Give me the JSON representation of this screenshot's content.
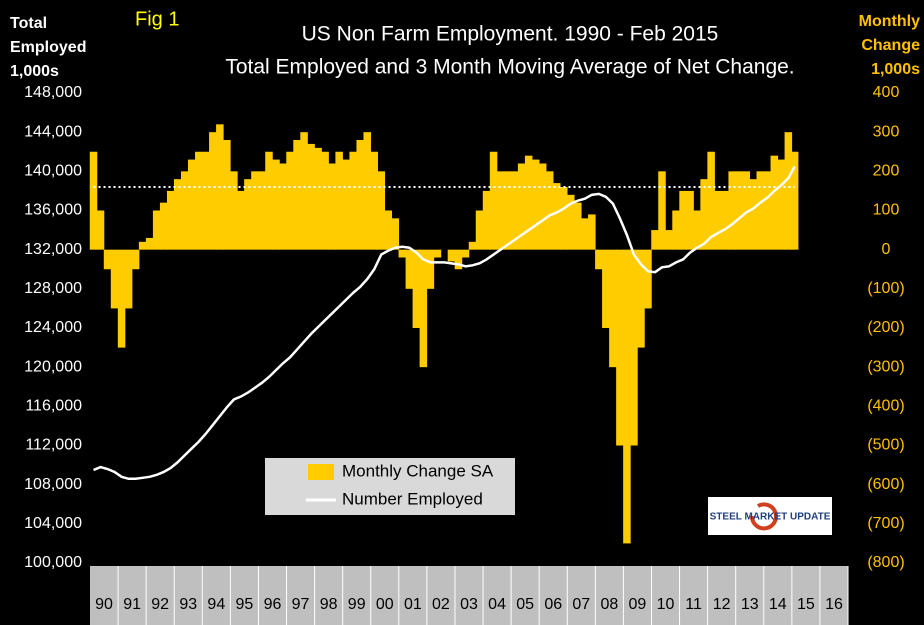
{
  "chart_data": {
    "type": "bar_line",
    "fig_label": "Fig 1",
    "title": [
      "US Non Farm Employment. 1990 - Feb 2015",
      "Total Employed and 3 Month Moving Average of Net Change."
    ],
    "y_label": [
      "Total",
      "Employed",
      "1,000s"
    ],
    "y2_label": [
      "Monthly",
      "Change",
      "1,000s"
    ],
    "logo": "STEEL MARKET UPDATE",
    "xlim": [
      1990,
      2017
    ],
    "xticks": [
      {
        "value": 1990.5,
        "label": "90"
      },
      {
        "value": 1991.5,
        "label": "91"
      },
      {
        "value": 1992.5,
        "label": "92"
      },
      {
        "value": 1993.5,
        "label": "93"
      },
      {
        "value": 1994.5,
        "label": "94"
      },
      {
        "value": 1995.5,
        "label": "95"
      },
      {
        "value": 1996.5,
        "label": "96"
      },
      {
        "value": 1997.5,
        "label": "97"
      },
      {
        "value": 1998.5,
        "label": "98"
      },
      {
        "value": 1999.5,
        "label": "99"
      },
      {
        "value": 2000.5,
        "label": "00"
      },
      {
        "value": 2001.5,
        "label": "01"
      },
      {
        "value": 2002.5,
        "label": "02"
      },
      {
        "value": 2003.5,
        "label": "03"
      },
      {
        "value": 2004.5,
        "label": "04"
      },
      {
        "value": 2005.5,
        "label": "05"
      },
      {
        "value": 2006.5,
        "label": "06"
      },
      {
        "value": 2007.5,
        "label": "07"
      },
      {
        "value": 2008.5,
        "label": "08"
      },
      {
        "value": 2009.5,
        "label": "09"
      },
      {
        "value": 2010.5,
        "label": "10"
      },
      {
        "value": 2011.5,
        "label": "11"
      },
      {
        "value": 2012.5,
        "label": "12"
      },
      {
        "value": 2013.5,
        "label": "13"
      },
      {
        "value": 2014.5,
        "label": "14"
      },
      {
        "value": 2015.5,
        "label": "15"
      },
      {
        "value": 2016.5,
        "label": "16"
      }
    ],
    "ylim": [
      100000,
      148000
    ],
    "yticks": [
      {
        "value": 100000,
        "label": "100,000"
      },
      {
        "value": 104000,
        "label": "104,000"
      },
      {
        "value": 108000,
        "label": "108,000"
      },
      {
        "value": 112000,
        "label": "112,000"
      },
      {
        "value": 116000,
        "label": "116,000"
      },
      {
        "value": 120000,
        "label": "120,000"
      },
      {
        "value": 124000,
        "label": "124,000"
      },
      {
        "value": 128000,
        "label": "128,000"
      },
      {
        "value": 132000,
        "label": "132,000"
      },
      {
        "value": 136000,
        "label": "136,000"
      },
      {
        "value": 140000,
        "label": "140,000"
      },
      {
        "value": 144000,
        "label": "144,000"
      },
      {
        "value": 148000,
        "label": "148,000"
      }
    ],
    "y2lim": [
      -800,
      400
    ],
    "y2ticks": [
      {
        "value": -800,
        "label": "(800)"
      },
      {
        "value": -700,
        "label": "(700)"
      },
      {
        "value": -600,
        "label": "(600)"
      },
      {
        "value": -500,
        "label": "(500)"
      },
      {
        "value": -400,
        "label": "(400)"
      },
      {
        "value": -300,
        "label": "(300)"
      },
      {
        "value": -200,
        "label": "(200)"
      },
      {
        "value": -100,
        "label": "(100)"
      },
      0,
      100,
      200,
      300,
      400
    ],
    "reference_line": {
      "axis": "y2",
      "value": 160,
      "color": "#ffffff"
    },
    "x": [
      1990.125,
      1990.375,
      1990.625,
      1990.875,
      1991.125,
      1991.375,
      1991.625,
      1991.875,
      1992.125,
      1992.375,
      1992.625,
      1992.875,
      1993.125,
      1993.375,
      1993.625,
      1993.875,
      1994.125,
      1994.375,
      1994.625,
      1994.875,
      1995.125,
      1995.375,
      1995.625,
      1995.875,
      1996.125,
      1996.375,
      1996.625,
      1996.875,
      1997.125,
      1997.375,
      1997.625,
      1997.875,
      1998.125,
      1998.375,
      1998.625,
      1998.875,
      1999.125,
      1999.375,
      1999.625,
      1999.875,
      2000.125,
      2000.375,
      2000.625,
      2000.875,
      2001.125,
      2001.375,
      2001.625,
      2001.875,
      2002.125,
      2002.375,
      2002.625,
      2002.875,
      2003.125,
      2003.375,
      2003.625,
      2003.875,
      2004.125,
      2004.375,
      2004.625,
      2004.875,
      2005.125,
      2005.375,
      2005.625,
      2005.875,
      2006.125,
      2006.375,
      2006.625,
      2006.875,
      2007.125,
      2007.375,
      2007.625,
      2007.875,
      2008.125,
      2008.375,
      2008.625,
      2008.875,
      2009.125,
      2009.375,
      2009.625,
      2009.875,
      2010.125,
      2010.375,
      2010.625,
      2010.875,
      2011.125,
      2011.375,
      2011.625,
      2011.875,
      2012.125,
      2012.375,
      2012.625,
      2012.875,
      2013.125,
      2013.375,
      2013.625,
      2013.875,
      2014.125,
      2014.375,
      2014.625,
      2014.875,
      2015.1
    ],
    "series": [
      {
        "name": "Monthly Change SA",
        "color": "#ffcc00",
        "axis": "y2",
        "values": [
          250,
          100,
          -50,
          -150,
          -250,
          -150,
          -50,
          20,
          30,
          100,
          120,
          150,
          180,
          200,
          230,
          250,
          250,
          300,
          320,
          280,
          200,
          150,
          180,
          200,
          200,
          250,
          230,
          220,
          250,
          280,
          300,
          270,
          260,
          250,
          220,
          250,
          230,
          250,
          280,
          300,
          250,
          200,
          100,
          80,
          -20,
          -100,
          -200,
          -300,
          -100,
          -20,
          0,
          -30,
          -50,
          -20,
          20,
          100,
          150,
          250,
          200,
          200,
          200,
          220,
          240,
          230,
          220,
          200,
          170,
          160,
          140,
          120,
          80,
          90,
          -50,
          -200,
          -300,
          -500,
          -750,
          -500,
          -250,
          -150,
          50,
          200,
          50,
          100,
          150,
          150,
          100,
          180,
          250,
          150,
          150,
          200,
          200,
          200,
          180,
          200,
          200,
          240,
          230,
          300,
          250
        ]
      },
      {
        "name": "Number Employed",
        "color": "#ffffff",
        "axis": "y",
        "values": [
          109500,
          109800,
          109600,
          109300,
          108800,
          108600,
          108600,
          108700,
          108800,
          109000,
          109300,
          109700,
          110300,
          111000,
          111700,
          112400,
          113200,
          114100,
          115000,
          115900,
          116700,
          117000,
          117400,
          117900,
          118400,
          119000,
          119700,
          120400,
          121000,
          121800,
          122600,
          123400,
          124100,
          124800,
          125500,
          126200,
          126900,
          127600,
          128200,
          129000,
          130000,
          131500,
          131900,
          132200,
          132300,
          132200,
          131700,
          131000,
          130700,
          130700,
          130700,
          130600,
          130500,
          130300,
          130400,
          130600,
          131000,
          131500,
          132000,
          132500,
          133000,
          133500,
          134000,
          134500,
          135000,
          135500,
          135800,
          136200,
          136700,
          137000,
          137200,
          137600,
          137700,
          137400,
          136700,
          135200,
          133500,
          131500,
          130500,
          129800,
          129700,
          130200,
          130300,
          130700,
          131000,
          131700,
          132200,
          132600,
          133300,
          133700,
          134100,
          134600,
          135200,
          135800,
          136200,
          136800,
          137300,
          138000,
          138600,
          139300,
          140500
        ]
      }
    ]
  }
}
